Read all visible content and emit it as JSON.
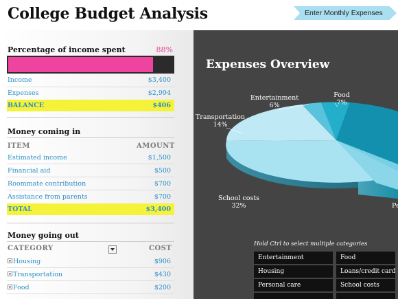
{
  "header": {
    "title": "College Budget Analysis",
    "nav_button": "Enter Monthly Expenses"
  },
  "summary": {
    "title": "Percentage of income spent",
    "percent_label": "88%",
    "percent_value": 0.88,
    "bar_color": "#ee44a0",
    "rows": [
      {
        "label": "Income",
        "value": "$3,400"
      },
      {
        "label": "Expenses",
        "value": "$2,994"
      },
      {
        "label": "BALANCE",
        "value": "$406"
      }
    ]
  },
  "income": {
    "title": "Money coming in",
    "col_item": "ITEM",
    "col_amount": "AMOUNT",
    "rows": [
      {
        "label": "Estimated income",
        "value": "$1,500"
      },
      {
        "label": "Financial aid",
        "value": "$500"
      },
      {
        "label": "Roommate contribution",
        "value": "$700"
      },
      {
        "label": "Assistance from parents",
        "value": "$700"
      },
      {
        "label": "TOTAL",
        "value": "$3,400"
      }
    ]
  },
  "outgoing": {
    "title": "Money going out",
    "col_category": "CATEGORY",
    "col_cost": "COST",
    "rows": [
      {
        "label": "Housing",
        "value": "$906"
      },
      {
        "label": "Transportation",
        "value": "$430"
      },
      {
        "label": "Food",
        "value": "$200"
      }
    ]
  },
  "overview": {
    "title": "Expenses Overview",
    "hint": "Hold Ctrl to select multiple categories",
    "slicers": [
      "Entertainment",
      "Food",
      "Housing",
      "Loans/credit cards",
      "Personal care",
      "School costs"
    ],
    "pie_labels": [
      {
        "name": "Entertainment",
        "value": "6%"
      },
      {
        "name": "Food",
        "value": "7%"
      },
      {
        "name": "Transportation",
        "value": "14%"
      },
      {
        "name": "School costs",
        "value": "32%"
      },
      {
        "name": "Pe",
        "value": ""
      }
    ],
    "colors": {
      "panel": "#444444",
      "accent": "#1fb5d0",
      "highlight": "#f5f23a"
    }
  }
}
